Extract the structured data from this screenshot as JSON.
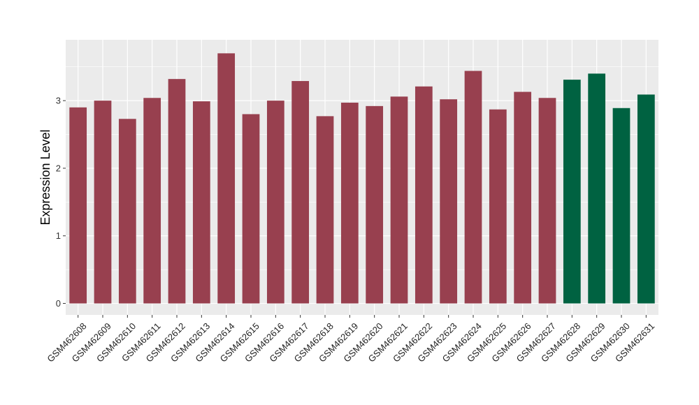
{
  "chart_data": {
    "type": "bar",
    "title": "",
    "xlabel": "",
    "ylabel": "Expression Level",
    "ylim": [
      -0.17,
      3.9
    ],
    "yticks": [
      0,
      1,
      2,
      3
    ],
    "grid": true,
    "categories": [
      "GSM462608",
      "GSM462609",
      "GSM462610",
      "GSM462611",
      "GSM462612",
      "GSM462613",
      "GSM462614",
      "GSM462615",
      "GSM462616",
      "GSM462617",
      "GSM462618",
      "GSM462619",
      "GSM462620",
      "GSM462621",
      "GSM462622",
      "GSM462623",
      "GSM462624",
      "GSM462625",
      "GSM462626",
      "GSM462627",
      "GSM462628",
      "GSM462629",
      "GSM462630",
      "GSM462631"
    ],
    "values": [
      2.9,
      3.0,
      2.73,
      3.04,
      3.32,
      2.99,
      3.7,
      2.8,
      3.0,
      3.29,
      2.77,
      2.97,
      2.92,
      3.06,
      3.21,
      3.02,
      3.44,
      2.87,
      3.13,
      3.04,
      3.31,
      3.4,
      2.89,
      3.09
    ],
    "colors": [
      "#98404F",
      "#98404F",
      "#98404F",
      "#98404F",
      "#98404F",
      "#98404F",
      "#98404F",
      "#98404F",
      "#98404F",
      "#98404F",
      "#98404F",
      "#98404F",
      "#98404F",
      "#98404F",
      "#98404F",
      "#98404F",
      "#98404F",
      "#98404F",
      "#98404F",
      "#98404F",
      "#006241",
      "#006241",
      "#006241",
      "#006241"
    ],
    "panel_background": "#EBEBEB",
    "grid_color": "#FFFFFF"
  }
}
